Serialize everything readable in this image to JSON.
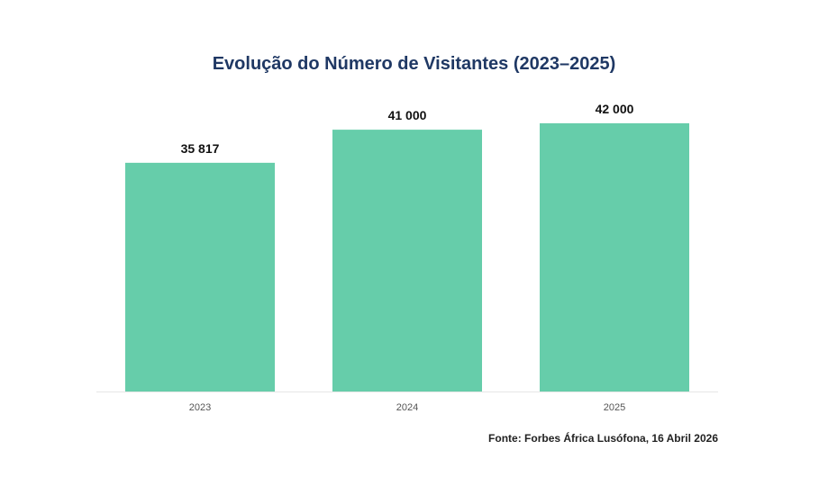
{
  "chart_data": {
    "type": "bar",
    "title": "Evolução do Número de Visitantes (2023–2025)",
    "xlabel": "",
    "ylabel": "",
    "categories": [
      "2023",
      "2024",
      "2025"
    ],
    "values": [
      35817,
      41000,
      42000
    ],
    "data_labels": [
      "35 817",
      "41 000",
      "42 000"
    ],
    "ylim": [
      0,
      45000
    ],
    "grid": false,
    "legend": "none",
    "bar_color": "#66cdaa"
  },
  "source": "Fonte: Forbes África Lusófona, 16 Abril 2026"
}
